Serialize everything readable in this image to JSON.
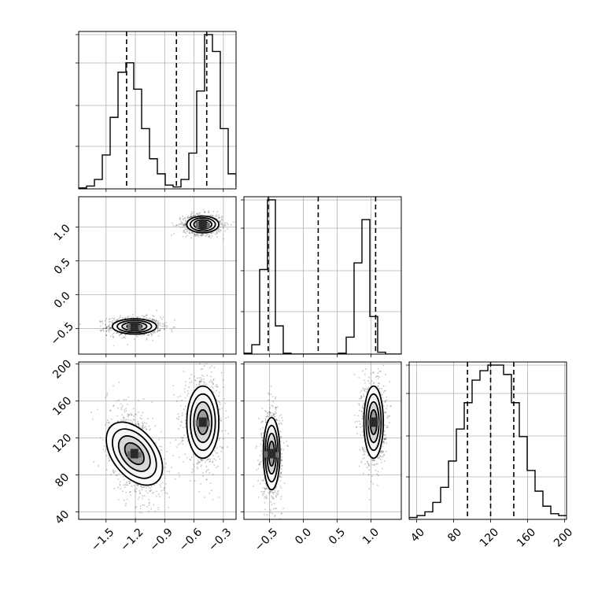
{
  "chart_data": [
    {
      "id": "hist-x",
      "type": "bar",
      "xlim": [
        -1.78,
        -0.17
      ],
      "dashed_lines": [
        -1.29,
        -0.78,
        -0.47
      ],
      "bins_start": -1.78,
      "bin_width": 0.0805,
      "counts": [
        1,
        3,
        10,
        36,
        76,
        124,
        134,
        106,
        64,
        32,
        16,
        4,
        2,
        10,
        38,
        104,
        164,
        146,
        64,
        16,
        3
      ],
      "y_ticks_visible": false,
      "x_tick_labels_visible": false,
      "grid": true
    },
    {
      "id": "scatter-x-y",
      "type": "scatter",
      "xlim": [
        -1.78,
        -0.17
      ],
      "ylim": [
        -0.88,
        1.45
      ],
      "clusters": [
        {
          "cx": -1.21,
          "cy": -0.47,
          "sx": 0.11,
          "sy": 0.055
        },
        {
          "cx": -0.51,
          "cy": 1.04,
          "sx": 0.08,
          "sy": 0.06
        }
      ],
      "y_ticks": [
        -0.5,
        0.0,
        0.5,
        1.0
      ],
      "y_tick_labels": [
        "−0.5",
        "0.0",
        "0.5",
        "1.0"
      ],
      "grid": true
    },
    {
      "id": "hist-y",
      "type": "bar",
      "xlim": [
        -0.88,
        1.45
      ],
      "dashed_lines": [
        -0.52,
        0.22,
        1.07
      ],
      "bins_start": -0.88,
      "bin_width": 0.1165,
      "counts": [
        1,
        10,
        90,
        164,
        30,
        1,
        0,
        0,
        0,
        0,
        0,
        0,
        1,
        18,
        97,
        143,
        40,
        2,
        0,
        0
      ],
      "y_ticks_visible": false,
      "x_tick_labels_visible": false,
      "grid": true
    },
    {
      "id": "scatter-x-z",
      "type": "scatter",
      "xlim": [
        -1.78,
        -0.17
      ],
      "ylim": [
        32,
        202
      ],
      "clusters": [
        {
          "cx": -1.21,
          "cy": 103,
          "sx": 0.11,
          "sy": 19,
          "tilt": -0.55
        },
        {
          "cx": -0.51,
          "cy": 137,
          "sx": 0.08,
          "sy": 19,
          "tilt": 0
        }
      ],
      "x_ticks": [
        -1.5,
        -1.2,
        -0.9,
        -0.6,
        -0.3
      ],
      "x_tick_labels": [
        "−1.5",
        "−1.2",
        "−0.9",
        "−0.6",
        "−0.3"
      ],
      "y_ticks": [
        40,
        80,
        120,
        160,
        200
      ],
      "y_tick_labels": [
        "40",
        "80",
        "120",
        "160",
        "200"
      ],
      "grid": true
    },
    {
      "id": "scatter-y-z",
      "type": "scatter",
      "xlim": [
        -0.88,
        1.45
      ],
      "ylim": [
        32,
        202
      ],
      "clusters": [
        {
          "cx": -0.47,
          "cy": 103,
          "sx": 0.06,
          "sy": 19,
          "tilt": 0
        },
        {
          "cx": 1.04,
          "cy": 137,
          "sx": 0.07,
          "sy": 19,
          "tilt": 0
        }
      ],
      "x_ticks": [
        -0.5,
        0.0,
        0.5,
        1.0
      ],
      "x_tick_labels": [
        "−0.5",
        "0.0",
        "0.5",
        "1.0"
      ],
      "grid": true
    },
    {
      "id": "hist-z",
      "type": "bar",
      "xlim": [
        32,
        202
      ],
      "dashed_lines": [
        95,
        120,
        145
      ],
      "bins_start": 32,
      "bin_width": 8.5,
      "counts": [
        1,
        2,
        4,
        9,
        17,
        31,
        48,
        62,
        74,
        79,
        82,
        82,
        77,
        62,
        44,
        26,
        15,
        7,
        3,
        2
      ],
      "x_ticks": [
        40,
        80,
        120,
        160,
        200
      ],
      "x_tick_labels": [
        "40",
        "80",
        "120",
        "160",
        "200"
      ],
      "y_ticks_visible": false,
      "grid": true
    }
  ]
}
